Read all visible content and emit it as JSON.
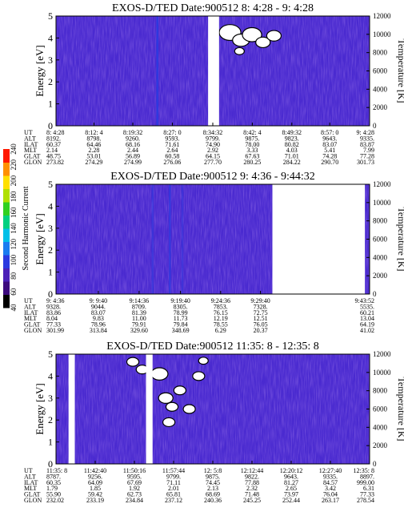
{
  "chart_data": [
    {
      "type": "heatmap",
      "title": "EXOS-D/TED   Date:900512  8: 4:28 - 9: 4:28",
      "ylabel": "Energy [eV]",
      "y2label": "Temperature [K]",
      "ylim": [
        0,
        5
      ],
      "y2lim": [
        0,
        12000
      ],
      "yticks": [
        "0",
        "1",
        "2",
        "3",
        "4",
        "5"
      ],
      "y2ticks": [
        "0",
        "2000",
        "4000",
        "6000",
        "8000",
        "10000",
        "12000"
      ],
      "gaps": [
        [
          0.485,
          0.52
        ]
      ],
      "white_blobs": [
        [
          0.555,
          0.85,
          0.09
        ],
        [
          0.59,
          0.78,
          0.07
        ],
        [
          0.625,
          0.83,
          0.08
        ],
        [
          0.66,
          0.76,
          0.06
        ],
        [
          0.695,
          0.82,
          0.06
        ],
        [
          0.585,
          0.68,
          0.04
        ]
      ],
      "stripes": [
        [
          0.32,
          0.9
        ]
      ],
      "row_labels": [
        "UT",
        "ALT",
        "ILAT",
        "MLT",
        "GLAT",
        "GLON"
      ],
      "columns": [
        {
          "pos": 0.0,
          "values": [
            "8: 4:28",
            "8192.",
            "60.37",
            "2.14",
            "48.75",
            "273.82"
          ]
        },
        {
          "pos": 0.121,
          "values": [
            "8:12: 4",
            "8798.",
            "64.46",
            "2.28",
            "53.01",
            "274.29"
          ]
        },
        {
          "pos": 0.245,
          "values": [
            "8:19:32",
            "9260.",
            "68.16",
            "2.44",
            "56.89",
            "274.99"
          ]
        },
        {
          "pos": 0.371,
          "values": [
            "8:27: 0",
            "9593.",
            "71.61",
            "2.64",
            "60.58",
            "276.06"
          ]
        },
        {
          "pos": 0.5,
          "values": [
            "8:34:32",
            "9799.",
            "74.90",
            "2.92",
            "64.15",
            "277.70"
          ]
        },
        {
          "pos": 0.626,
          "values": [
            "8:42: 4",
            "9875.",
            "78.00",
            "3.33",
            "67.63",
            "280.25"
          ]
        },
        {
          "pos": 0.752,
          "values": [
            "8:49:32",
            "9823.",
            "80.82",
            "4.03",
            "71.01",
            "284.22"
          ]
        },
        {
          "pos": 0.873,
          "values": [
            "8:57: 0",
            "9643.",
            "83.07",
            "5.41",
            "74.28",
            "290.70"
          ]
        },
        {
          "pos": 1.0,
          "values": [
            "9: 4:28",
            "9335.",
            "83.87",
            "7.99",
            "77.28",
            "301.73"
          ]
        }
      ]
    },
    {
      "type": "heatmap",
      "title": "EXOS-D/TED   Date:900512  9: 4:36 - 9:44:32",
      "ylabel": "Energy [eV]",
      "y2label": "Temperature [K]",
      "ylim": [
        0,
        5
      ],
      "y2lim": [
        0,
        12000
      ],
      "yticks": [
        "0",
        "1",
        "2",
        "3",
        "4",
        "5"
      ],
      "y2ticks": [
        "0",
        "2000",
        "4000",
        "6000",
        "8000",
        "10000",
        "12000"
      ],
      "gaps": [
        [
          0.69,
          0.985
        ]
      ],
      "white_blobs": [],
      "stripes": [
        [
          0.305,
          0.5
        ],
        [
          0.36,
          0.7
        ],
        [
          0.4,
          0.4
        ]
      ],
      "row_labels": [
        "UT",
        "ALT",
        "ILAT",
        "MLT",
        "GLAT",
        "GLON"
      ],
      "columns": [
        {
          "pos": 0.0,
          "values": [
            "9: 4:36",
            "9328.",
            "83.86",
            "8.04",
            "77.33",
            "301.99"
          ]
        },
        {
          "pos": 0.135,
          "values": [
            "9: 9:40",
            "9044.",
            "83.07",
            "9.83",
            "78.96",
            "313.84"
          ]
        },
        {
          "pos": 0.265,
          "values": [
            "9:14:36",
            "8709.",
            "81.39",
            "11.00",
            "79.91",
            "329.60"
          ]
        },
        {
          "pos": 0.397,
          "values": [
            "9:19:40",
            "8305.",
            "78.99",
            "11.73",
            "79.84",
            "348.69"
          ]
        },
        {
          "pos": 0.525,
          "values": [
            "9:24:36",
            "7853.",
            "76.15",
            "12.19",
            "78.55",
            "6.29"
          ]
        },
        {
          "pos": 0.652,
          "values": [
            "9:29:40",
            "7328.",
            "72.75",
            "12.51",
            "76.05",
            "20.37"
          ]
        },
        {
          "pos": 1.0,
          "values": [
            "9:43:52",
            "5535.",
            "60.21",
            "13.04",
            "64.19",
            "41.02"
          ]
        }
      ]
    },
    {
      "type": "heatmap",
      "title": "EXOS-D/TED   Date:900512  11:35: 8 - 12:35: 8",
      "ylabel": "Energy [eV]",
      "y2label": "Temperature [K]",
      "ylim": [
        0,
        5
      ],
      "y2lim": [
        0,
        12000
      ],
      "yticks": [
        "0",
        "1",
        "2",
        "3",
        "4",
        "5"
      ],
      "y2ticks": [
        "0",
        "2000",
        "4000",
        "6000",
        "8000",
        "10000",
        "12000"
      ],
      "gaps": [
        [
          0.04,
          0.06
        ],
        [
          0.287,
          0.308
        ]
      ],
      "white_blobs": [
        [
          0.245,
          0.93,
          0.05
        ],
        [
          0.275,
          0.86,
          0.05
        ],
        [
          0.33,
          0.82,
          0.07
        ],
        [
          0.35,
          0.6,
          0.06
        ],
        [
          0.37,
          0.52,
          0.05
        ],
        [
          0.36,
          0.38,
          0.05
        ],
        [
          0.395,
          0.67,
          0.05
        ],
        [
          0.425,
          0.5,
          0.05
        ],
        [
          0.455,
          0.8,
          0.05
        ],
        [
          0.47,
          0.94,
          0.04
        ]
      ],
      "stripes": [],
      "row_labels": [
        "UT",
        "ALT",
        "ILAT",
        "MLT",
        "GLAT",
        "GLON"
      ],
      "columns": [
        {
          "pos": 0.0,
          "values": [
            "11:35: 8",
            "8787.",
            "60.35",
            "1.79",
            "55.90",
            "232.02"
          ]
        },
        {
          "pos": 0.125,
          "values": [
            "11:42:40",
            "9256.",
            "64.09",
            "1.85",
            "59.42",
            "233.19"
          ]
        },
        {
          "pos": 0.25,
          "values": [
            "11:50:16",
            "9595.",
            "67.69",
            "1.92",
            "62.73",
            "234.84"
          ]
        },
        {
          "pos": 0.375,
          "values": [
            "11:57:44",
            "9799.",
            "71.11",
            "2.01",
            "65.81",
            "237.12"
          ]
        },
        {
          "pos": 0.5,
          "values": [
            "12: 5:8",
            "9875.",
            "74.45",
            "2.13",
            "68.69",
            "240.36"
          ]
        },
        {
          "pos": 0.625,
          "values": [
            "12:12:44",
            "9822.",
            "77.88",
            "2.32",
            "71.48",
            "245.25"
          ]
        },
        {
          "pos": 0.75,
          "values": [
            "12:20:12",
            "9643.",
            "81.27",
            "2.65",
            "73.97",
            "252.44"
          ]
        },
        {
          "pos": 0.875,
          "values": [
            "12:27:40",
            "9335.",
            "84.57",
            "3.42",
            "76.04",
            "263.17"
          ]
        },
        {
          "pos": 1.0,
          "values": [
            "12:35: 8",
            "8897.",
            "999.00",
            "6.31",
            "77.33",
            "278.54"
          ]
        }
      ]
    }
  ],
  "colorbar": {
    "label": "Second Harmonic Current",
    "ticks": [
      "40",
      "60",
      "80",
      "100",
      "120",
      "140",
      "160",
      "180",
      "200",
      "220",
      "240"
    ],
    "colors": [
      "#000000",
      "#3c0a7e",
      "#4b21b8",
      "#2b3ae0",
      "#1a7cf0",
      "#00c0e8",
      "#00d080",
      "#30d020",
      "#b0e000",
      "#ffe000",
      "#ff9000",
      "#ff1800"
    ]
  }
}
